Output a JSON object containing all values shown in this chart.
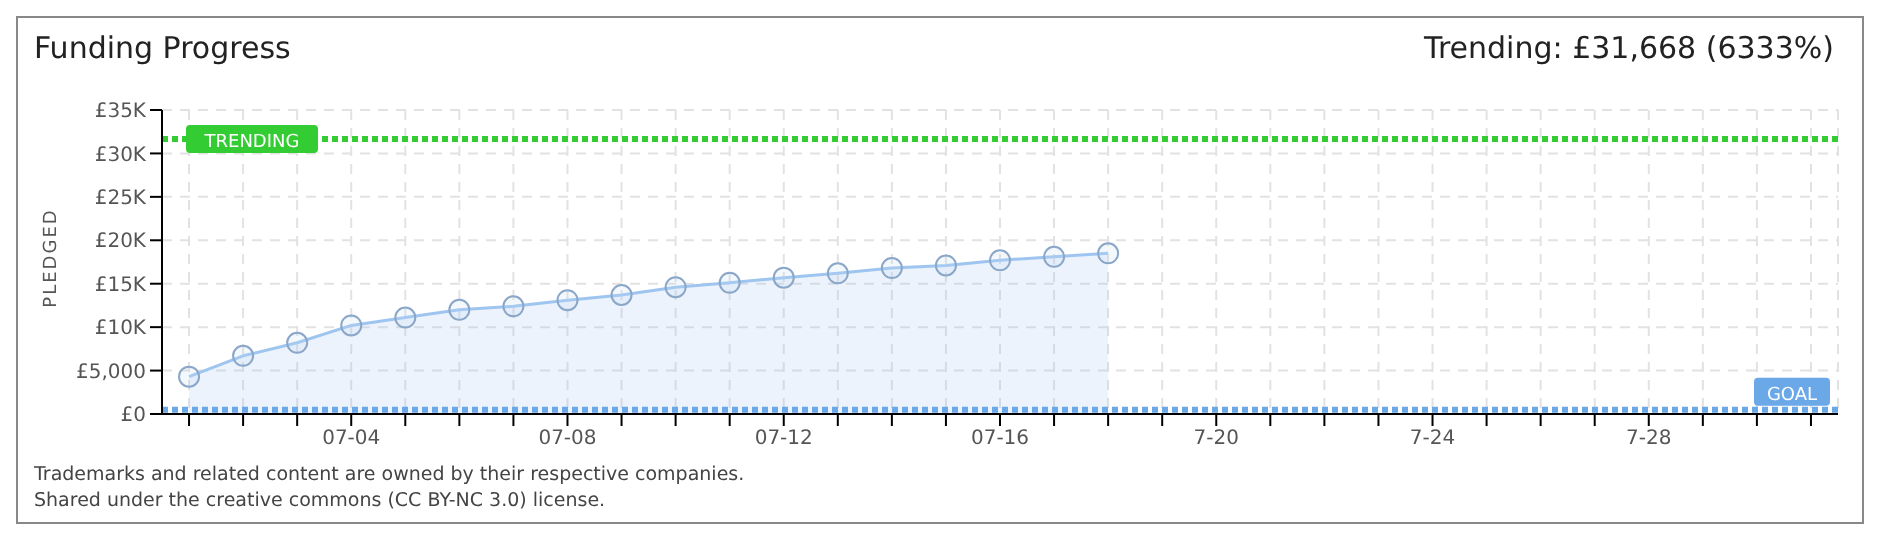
{
  "chart_data": {
    "type": "area",
    "title": "Funding Progress",
    "ylabel": "PLEDGED",
    "annotations": [
      "Trending:  £31,668 (6333%)",
      "Trademarks and related content are owned by their respective companies.",
      "Shared under the creative commons (CC BY-NC 3.0) license."
    ],
    "categories": [
      null,
      null,
      null,
      "07-04",
      null,
      null,
      null,
      "07-08",
      null,
      null,
      null,
      "07-12",
      null,
      null,
      null,
      "07-16",
      null,
      null,
      null,
      "7-20",
      null,
      null,
      null,
      "7-24",
      null,
      null,
      null,
      "7-28",
      null,
      null,
      null
    ],
    "series": [
      {
        "color": "#9ec5f0",
        "values": [
          4300,
          6700,
          8200,
          10200,
          11100,
          12000,
          12400,
          13100,
          13700,
          14600,
          15100,
          15700,
          16200,
          16800,
          17100,
          17700,
          18100,
          18500,
          null,
          null,
          null,
          null,
          null,
          null,
          null,
          null,
          null,
          null,
          null,
          null,
          null
        ]
      }
    ],
    "ylim": [
      0,
      35000
    ],
    "yticks": [
      {
        "value": 0,
        "label": "£0"
      },
      {
        "value": 5000,
        "label": "£5,000"
      },
      {
        "value": 10000,
        "label": "£10K"
      },
      {
        "value": 15000,
        "label": "£15K"
      },
      {
        "value": 20000,
        "label": "£20K"
      },
      {
        "value": 25000,
        "label": "£25K"
      },
      {
        "value": 30000,
        "label": "£30K"
      },
      {
        "value": 35000,
        "label": "£35K"
      }
    ],
    "ref_lines": [
      {
        "axis": "y",
        "value": 31668,
        "label": "TRENDING",
        "color": "#33cc33",
        "line_style": "dotted"
      },
      {
        "axis": "y",
        "value": 500,
        "label": "GOAL",
        "color": "#6aa8e8",
        "line_style": "dotted"
      }
    ],
    "grid": true,
    "marker": "circle",
    "legend": false
  }
}
